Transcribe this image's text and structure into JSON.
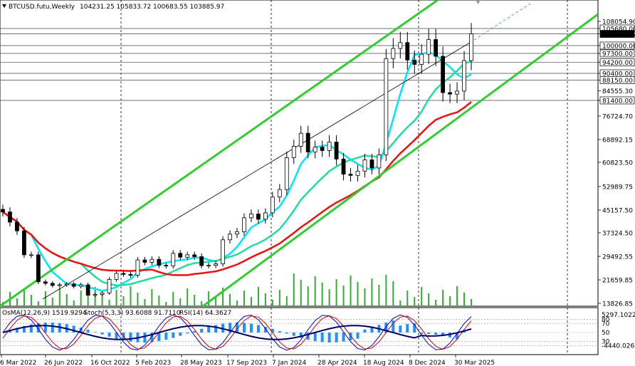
{
  "header": {
    "symbol": "BTCUSD.futu,Weekly",
    "ohlc": "104231.25 105833.72 100683.55 103885.97"
  },
  "indicator_header": {
    "osma": "OsMA(12,26,9) 1519.9294",
    "stoch": "Stoch(5,3,3) 93.6088 91.7110",
    "rsi": "RSI(14) 64.3627"
  },
  "price_axis_labels": [
    {
      "text": "108054.90",
      "v": 108054.9,
      "box": false
    },
    {
      "text": "105680.00",
      "v": 105680.0,
      "box": true
    },
    {
      "text": "103885.97",
      "v": 103885.97,
      "box": true,
      "current": true
    },
    {
      "text": "100000.00",
      "v": 100000.0,
      "box": true
    },
    {
      "text": "97300.00",
      "v": 97300.0,
      "box": true
    },
    {
      "text": "94200.00",
      "v": 94200.0,
      "box": true
    },
    {
      "text": "90400.00",
      "v": 90400.0,
      "box": true
    },
    {
      "text": "88150.00",
      "v": 88150.0,
      "box": true
    },
    {
      "text": "84555.30",
      "v": 84555.3,
      "box": false
    },
    {
      "text": "81400.00",
      "v": 81400.0,
      "box": true
    },
    {
      "text": "76724.70",
      "v": 76724.7,
      "box": false
    },
    {
      "text": "68892.15",
      "v": 68892.15,
      "box": false
    },
    {
      "text": "60823.50",
      "v": 60823.5,
      "box": false
    },
    {
      "text": "52989.75",
      "v": 52989.75,
      "box": false
    },
    {
      "text": "45157.50",
      "v": 45157.5,
      "box": false
    },
    {
      "text": "37324.50",
      "v": 37324.5,
      "box": false
    },
    {
      "text": "29492.55",
      "v": 29492.55,
      "box": false
    },
    {
      "text": "21659.85",
      "v": 21659.85,
      "box": false
    },
    {
      "text": "13826.85",
      "v": 13826.85,
      "box": false
    }
  ],
  "indicator_axis_labels": [
    {
      "text": "5297.1022",
      "v": 90
    },
    {
      "text": "80",
      "v": 80
    },
    {
      "text": "70",
      "v": 70
    },
    {
      "text": "50",
      "v": 50
    },
    {
      "text": "30",
      "v": 30
    },
    {
      "text": "-4440.0263",
      "v": 20
    }
  ],
  "time_labels": [
    "6 Mar 2022",
    "26 Jun 2022",
    "16 Oct 2022",
    "5 Feb 2023",
    "28 May 2023",
    "17 Sep 2023",
    "7 Jan 2024",
    "28 Apr 2024",
    "18 Aug 2024",
    "8 Dec 2024",
    "30 Mar 2025"
  ],
  "colors": {
    "candle": "#000000",
    "channel": "#32cd32",
    "ma_fast": "#00e5ff",
    "ma_mid": "#22dd99",
    "ma_slow": "#ee1111",
    "volume": "#33aa33",
    "osma_hist": "#1e90ff",
    "stoch_main": "#0000cc",
    "stoch_signal": "#cc0000",
    "level_line": "#444444"
  },
  "chart_data": {
    "type": "candlestick",
    "title": "BTCUSD.futu,Weekly",
    "ylim": [
      13826.85,
      110500
    ],
    "x": [
      "6 Mar 2022",
      "26 Jun 2022",
      "16 Oct 2022",
      "5 Feb 2023",
      "28 May 2023",
      "17 Sep 2023",
      "7 Jan 2024",
      "28 Apr 2024",
      "18 Aug 2024",
      "8 Dec 2024",
      "30 Mar 2025"
    ],
    "weekly_close": [
      44500,
      41000,
      38000,
      30000,
      30000,
      21000,
      20500,
      19800,
      20000,
      20300,
      19500,
      20000,
      16500,
      16800,
      17300,
      21800,
      23800,
      23500,
      23200,
      28300,
      27500,
      28500,
      26500,
      26300,
      30500,
      29200,
      30000,
      29400,
      26400,
      26500,
      27000,
      35000,
      36900,
      37700,
      42500,
      43800,
      42000,
      44200,
      49500,
      52000,
      62500,
      66500,
      71000,
      64500,
      66200,
      65000,
      68000,
      62000,
      57000,
      56600,
      58000,
      61700,
      59000,
      63500,
      95500,
      99000,
      101000,
      95000,
      93500,
      97000,
      102000,
      96300,
      84000,
      83500,
      84500,
      94800,
      103886
    ],
    "levels": [
      105680,
      103885.97,
      100000,
      97300,
      94200,
      90400,
      88150,
      81400
    ],
    "moving_averages": [
      "ma_fast",
      "ma_mid",
      "ma_slow"
    ],
    "indicators": {
      "osma": 1519.9294,
      "stoch_main": 93.6088,
      "stoch_signal": 91.711,
      "rsi": 64.3627
    }
  }
}
